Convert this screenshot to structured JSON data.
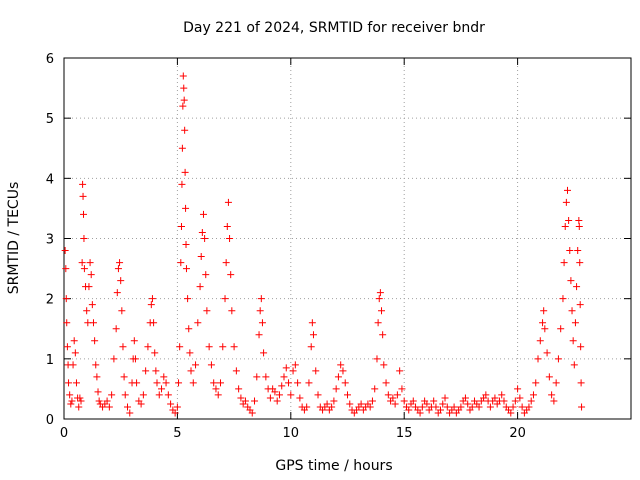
{
  "chart_data": {
    "type": "scatter",
    "title": "Day 221 of 2024, SRMTID for receiver bndr",
    "xlabel": "GPS time / hours",
    "ylabel": "SRMTID / TECUs",
    "xlim": [
      0,
      25
    ],
    "ylim": [
      0,
      6
    ],
    "xticks": [
      0,
      5,
      10,
      15,
      20
    ],
    "yticks": [
      0,
      1,
      2,
      3,
      4,
      5,
      6
    ],
    "grid": true,
    "marker": "+",
    "color": "#ff0000",
    "series": [
      {
        "name": "SRMTID",
        "points": [
          [
            0.05,
            2.8
          ],
          [
            0.08,
            2.5
          ],
          [
            0.1,
            2.0
          ],
          [
            0.12,
            1.6
          ],
          [
            0.15,
            1.2
          ],
          [
            0.18,
            0.9
          ],
          [
            0.2,
            0.6
          ],
          [
            0.25,
            0.4
          ],
          [
            0.3,
            0.25
          ],
          [
            0.35,
            0.3
          ],
          [
            0.4,
            0.9
          ],
          [
            0.45,
            1.3
          ],
          [
            0.5,
            1.1
          ],
          [
            0.55,
            0.6
          ],
          [
            0.6,
            0.35
          ],
          [
            0.65,
            0.2
          ],
          [
            0.7,
            0.35
          ],
          [
            0.75,
            0.3
          ],
          [
            0.8,
            2.6
          ],
          [
            0.82,
            3.9
          ],
          [
            0.84,
            3.7
          ],
          [
            0.86,
            3.4
          ],
          [
            0.88,
            3.0
          ],
          [
            0.9,
            2.5
          ],
          [
            0.95,
            2.2
          ],
          [
            1.0,
            1.8
          ],
          [
            1.05,
            1.6
          ],
          [
            1.1,
            2.2
          ],
          [
            1.15,
            2.6
          ],
          [
            1.2,
            2.4
          ],
          [
            1.25,
            1.9
          ],
          [
            1.3,
            1.6
          ],
          [
            1.35,
            1.3
          ],
          [
            1.4,
            0.9
          ],
          [
            1.45,
            0.7
          ],
          [
            1.5,
            0.45
          ],
          [
            1.55,
            0.3
          ],
          [
            1.6,
            0.25
          ],
          [
            1.7,
            0.2
          ],
          [
            1.8,
            0.25
          ],
          [
            1.9,
            0.3
          ],
          [
            2.0,
            0.2
          ],
          [
            2.1,
            0.4
          ],
          [
            2.2,
            1.0
          ],
          [
            2.3,
            1.5
          ],
          [
            2.35,
            2.1
          ],
          [
            2.4,
            2.5
          ],
          [
            2.45,
            2.6
          ],
          [
            2.5,
            2.3
          ],
          [
            2.55,
            1.8
          ],
          [
            2.6,
            1.2
          ],
          [
            2.65,
            0.7
          ],
          [
            2.7,
            0.4
          ],
          [
            2.8,
            0.2
          ],
          [
            2.9,
            0.1
          ],
          [
            3.0,
            0.6
          ],
          [
            3.05,
            1.0
          ],
          [
            3.1,
            1.3
          ],
          [
            3.15,
            1.0
          ],
          [
            3.2,
            0.6
          ],
          [
            3.3,
            0.3
          ],
          [
            3.4,
            0.25
          ],
          [
            3.5,
            0.4
          ],
          [
            3.6,
            0.8
          ],
          [
            3.7,
            1.2
          ],
          [
            3.8,
            1.6
          ],
          [
            3.85,
            1.9
          ],
          [
            3.9,
            2.0
          ],
          [
            3.95,
            1.6
          ],
          [
            4.0,
            1.1
          ],
          [
            4.05,
            0.8
          ],
          [
            4.1,
            0.6
          ],
          [
            4.2,
            0.4
          ],
          [
            4.3,
            0.5
          ],
          [
            4.4,
            0.7
          ],
          [
            4.5,
            0.6
          ],
          [
            4.6,
            0.4
          ],
          [
            4.7,
            0.25
          ],
          [
            4.8,
            0.15
          ],
          [
            4.9,
            0.1
          ],
          [
            5.0,
            0.2
          ],
          [
            5.05,
            0.6
          ],
          [
            5.1,
            1.2
          ],
          [
            5.15,
            2.6
          ],
          [
            5.18,
            3.2
          ],
          [
            5.2,
            3.9
          ],
          [
            5.22,
            4.5
          ],
          [
            5.24,
            5.2
          ],
          [
            5.26,
            5.7
          ],
          [
            5.28,
            5.5
          ],
          [
            5.3,
            5.3
          ],
          [
            5.32,
            4.8
          ],
          [
            5.34,
            4.1
          ],
          [
            5.36,
            3.5
          ],
          [
            5.38,
            2.9
          ],
          [
            5.4,
            2.5
          ],
          [
            5.45,
            2.0
          ],
          [
            5.5,
            1.5
          ],
          [
            5.55,
            1.1
          ],
          [
            5.6,
            0.8
          ],
          [
            5.7,
            0.6
          ],
          [
            5.8,
            0.9
          ],
          [
            5.9,
            1.6
          ],
          [
            6.0,
            2.2
          ],
          [
            6.05,
            2.7
          ],
          [
            6.1,
            3.1
          ],
          [
            6.15,
            3.4
          ],
          [
            6.2,
            3.0
          ],
          [
            6.25,
            2.4
          ],
          [
            6.3,
            1.8
          ],
          [
            6.4,
            1.2
          ],
          [
            6.5,
            0.9
          ],
          [
            6.6,
            0.6
          ],
          [
            6.7,
            0.5
          ],
          [
            6.8,
            0.4
          ],
          [
            6.9,
            0.6
          ],
          [
            7.0,
            1.2
          ],
          [
            7.1,
            2.0
          ],
          [
            7.15,
            2.6
          ],
          [
            7.2,
            3.2
          ],
          [
            7.25,
            3.6
          ],
          [
            7.3,
            3.0
          ],
          [
            7.35,
            2.4
          ],
          [
            7.4,
            1.8
          ],
          [
            7.5,
            1.2
          ],
          [
            7.6,
            0.8
          ],
          [
            7.7,
            0.5
          ],
          [
            7.8,
            0.35
          ],
          [
            7.9,
            0.25
          ],
          [
            8.0,
            0.3
          ],
          [
            8.1,
            0.2
          ],
          [
            8.2,
            0.15
          ],
          [
            8.3,
            0.1
          ],
          [
            8.4,
            0.3
          ],
          [
            8.5,
            0.7
          ],
          [
            8.6,
            1.4
          ],
          [
            8.65,
            1.8
          ],
          [
            8.7,
            2.0
          ],
          [
            8.75,
            1.6
          ],
          [
            8.8,
            1.1
          ],
          [
            8.9,
            0.7
          ],
          [
            9.0,
            0.5
          ],
          [
            9.1,
            0.35
          ],
          [
            9.2,
            0.5
          ],
          [
            9.3,
            0.45
          ],
          [
            9.4,
            0.3
          ],
          [
            9.5,
            0.4
          ],
          [
            9.6,
            0.55
          ],
          [
            9.7,
            0.7
          ],
          [
            9.8,
            0.85
          ],
          [
            9.9,
            0.6
          ],
          [
            10.0,
            0.4
          ],
          [
            10.1,
            0.8
          ],
          [
            10.2,
            0.9
          ],
          [
            10.3,
            0.6
          ],
          [
            10.4,
            0.35
          ],
          [
            10.5,
            0.2
          ],
          [
            10.6,
            0.15
          ],
          [
            10.7,
            0.2
          ],
          [
            10.8,
            0.6
          ],
          [
            10.9,
            1.2
          ],
          [
            10.95,
            1.6
          ],
          [
            11.0,
            1.4
          ],
          [
            11.1,
            0.8
          ],
          [
            11.2,
            0.4
          ],
          [
            11.3,
            0.2
          ],
          [
            11.4,
            0.15
          ],
          [
            11.5,
            0.2
          ],
          [
            11.6,
            0.25
          ],
          [
            11.7,
            0.15
          ],
          [
            11.8,
            0.2
          ],
          [
            11.9,
            0.3
          ],
          [
            12.0,
            0.5
          ],
          [
            12.1,
            0.7
          ],
          [
            12.2,
            0.9
          ],
          [
            12.3,
            0.8
          ],
          [
            12.4,
            0.6
          ],
          [
            12.5,
            0.4
          ],
          [
            12.6,
            0.25
          ],
          [
            12.7,
            0.15
          ],
          [
            12.8,
            0.1
          ],
          [
            12.9,
            0.15
          ],
          [
            13.0,
            0.2
          ],
          [
            13.1,
            0.25
          ],
          [
            13.2,
            0.15
          ],
          [
            13.3,
            0.2
          ],
          [
            13.4,
            0.25
          ],
          [
            13.5,
            0.2
          ],
          [
            13.6,
            0.3
          ],
          [
            13.7,
            0.5
          ],
          [
            13.8,
            1.0
          ],
          [
            13.85,
            1.6
          ],
          [
            13.9,
            2.0
          ],
          [
            13.95,
            2.1
          ],
          [
            14.0,
            1.8
          ],
          [
            14.05,
            1.4
          ],
          [
            14.1,
            0.9
          ],
          [
            14.2,
            0.6
          ],
          [
            14.3,
            0.4
          ],
          [
            14.4,
            0.3
          ],
          [
            14.5,
            0.35
          ],
          [
            14.6,
            0.25
          ],
          [
            14.7,
            0.4
          ],
          [
            14.8,
            0.8
          ],
          [
            14.9,
            0.5
          ],
          [
            15.0,
            0.3
          ],
          [
            15.1,
            0.2
          ],
          [
            15.2,
            0.15
          ],
          [
            15.3,
            0.25
          ],
          [
            15.4,
            0.3
          ],
          [
            15.5,
            0.2
          ],
          [
            15.6,
            0.15
          ],
          [
            15.7,
            0.1
          ],
          [
            15.8,
            0.2
          ],
          [
            15.9,
            0.3
          ],
          [
            16.0,
            0.25
          ],
          [
            16.1,
            0.15
          ],
          [
            16.2,
            0.2
          ],
          [
            16.3,
            0.3
          ],
          [
            16.4,
            0.2
          ],
          [
            16.5,
            0.1
          ],
          [
            16.6,
            0.15
          ],
          [
            16.7,
            0.25
          ],
          [
            16.8,
            0.35
          ],
          [
            16.9,
            0.2
          ],
          [
            17.0,
            0.1
          ],
          [
            17.1,
            0.15
          ],
          [
            17.2,
            0.2
          ],
          [
            17.3,
            0.1
          ],
          [
            17.4,
            0.15
          ],
          [
            17.5,
            0.2
          ],
          [
            17.6,
            0.3
          ],
          [
            17.7,
            0.35
          ],
          [
            17.8,
            0.25
          ],
          [
            17.9,
            0.15
          ],
          [
            18.0,
            0.2
          ],
          [
            18.1,
            0.3
          ],
          [
            18.2,
            0.25
          ],
          [
            18.3,
            0.2
          ],
          [
            18.4,
            0.3
          ],
          [
            18.5,
            0.35
          ],
          [
            18.6,
            0.4
          ],
          [
            18.7,
            0.3
          ],
          [
            18.8,
            0.2
          ],
          [
            18.9,
            0.3
          ],
          [
            19.0,
            0.35
          ],
          [
            19.1,
            0.25
          ],
          [
            19.2,
            0.3
          ],
          [
            19.3,
            0.4
          ],
          [
            19.4,
            0.3
          ],
          [
            19.5,
            0.2
          ],
          [
            19.6,
            0.15
          ],
          [
            19.7,
            0.1
          ],
          [
            19.8,
            0.2
          ],
          [
            19.9,
            0.3
          ],
          [
            20.0,
            0.5
          ],
          [
            20.1,
            0.35
          ],
          [
            20.2,
            0.2
          ],
          [
            20.3,
            0.1
          ],
          [
            20.4,
            0.15
          ],
          [
            20.5,
            0.2
          ],
          [
            20.6,
            0.3
          ],
          [
            20.7,
            0.4
          ],
          [
            20.8,
            0.6
          ],
          [
            20.9,
            1.0
          ],
          [
            21.0,
            1.3
          ],
          [
            21.1,
            1.6
          ],
          [
            21.15,
            1.8
          ],
          [
            21.2,
            1.5
          ],
          [
            21.3,
            1.1
          ],
          [
            21.4,
            0.7
          ],
          [
            21.5,
            0.4
          ],
          [
            21.6,
            0.3
          ],
          [
            21.7,
            0.6
          ],
          [
            21.8,
            1.0
          ],
          [
            21.9,
            1.5
          ],
          [
            22.0,
            2.0
          ],
          [
            22.05,
            2.6
          ],
          [
            22.1,
            3.2
          ],
          [
            22.15,
            3.6
          ],
          [
            22.2,
            3.8
          ],
          [
            22.25,
            3.3
          ],
          [
            22.3,
            2.8
          ],
          [
            22.35,
            2.3
          ],
          [
            22.4,
            1.8
          ],
          [
            22.45,
            1.3
          ],
          [
            22.5,
            0.9
          ],
          [
            22.55,
            1.6
          ],
          [
            22.6,
            2.2
          ],
          [
            22.65,
            2.8
          ],
          [
            22.7,
            3.3
          ],
          [
            22.72,
            3.2
          ],
          [
            22.74,
            2.6
          ],
          [
            22.76,
            1.9
          ],
          [
            22.78,
            1.2
          ],
          [
            22.8,
            0.6
          ],
          [
            22.82,
            0.2
          ]
        ]
      }
    ]
  }
}
